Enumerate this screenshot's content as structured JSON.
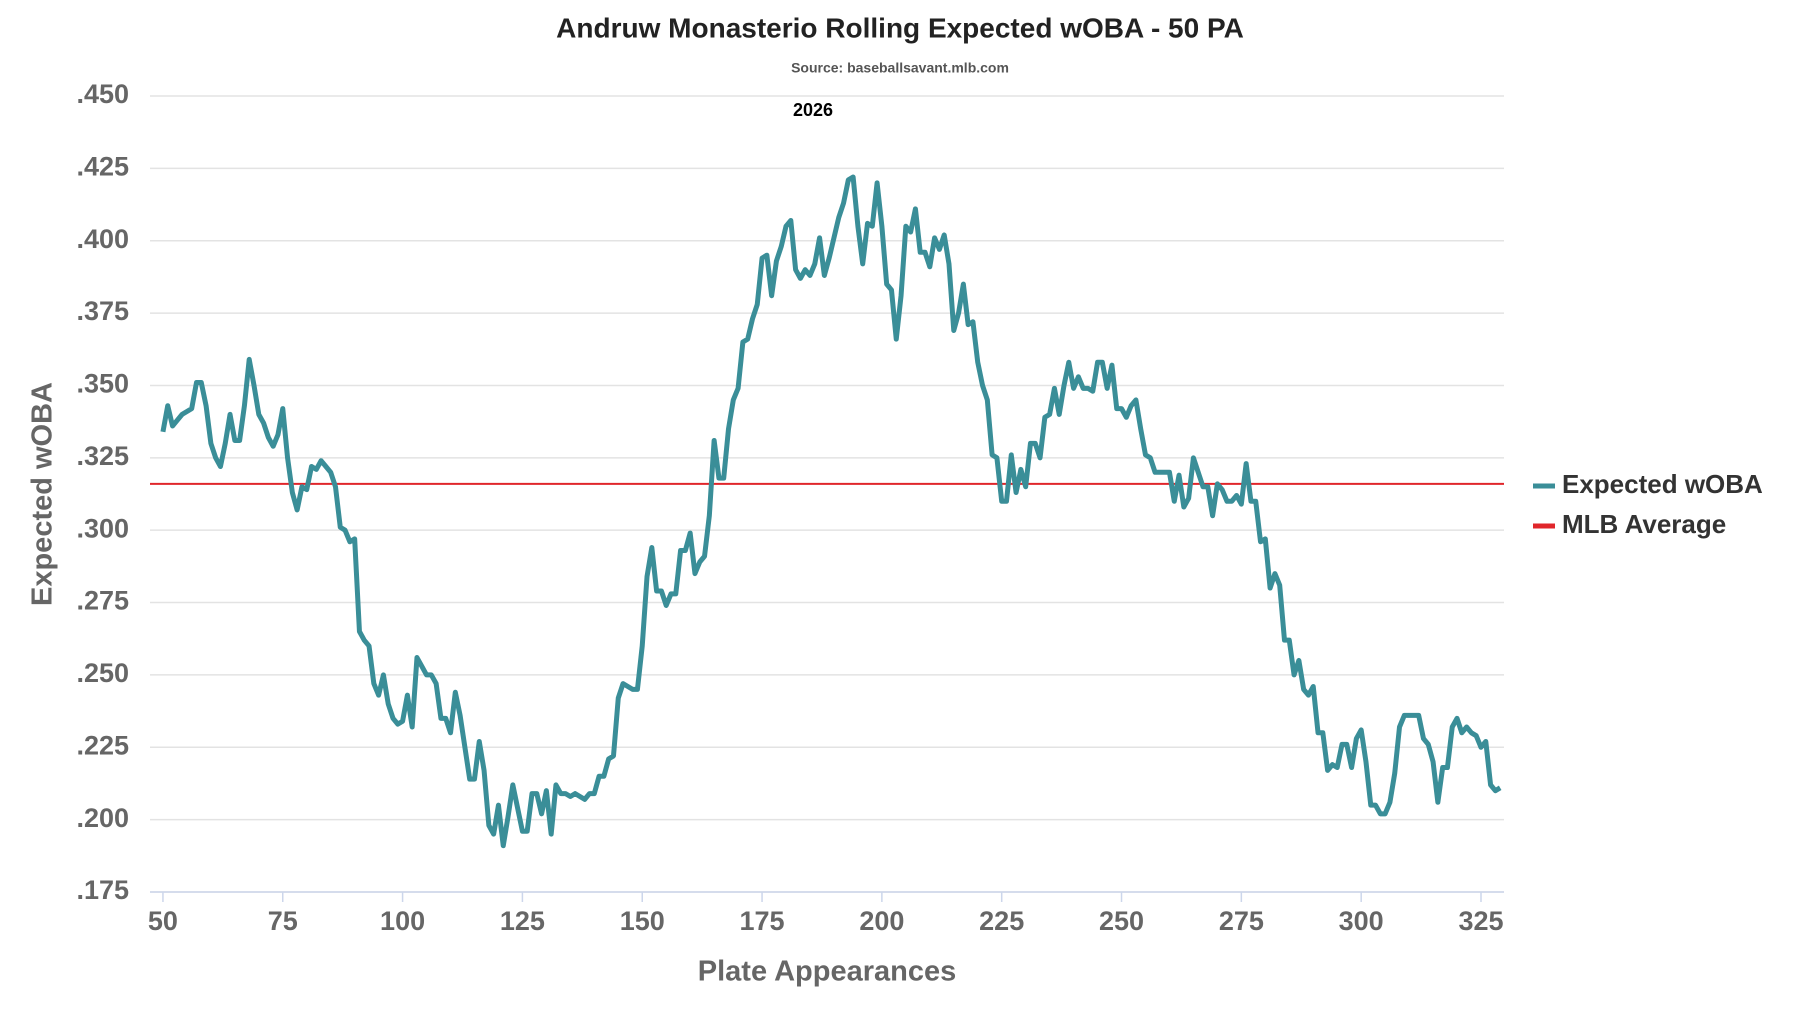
{
  "chart_data": {
    "type": "line",
    "title": "Andruw Monasterio Rolling Expected wOBA - 50 PA",
    "subtitle": "Source: baseballsavant.mlb.com",
    "annotation": "2026",
    "x_label": "Plate Appearances",
    "y_label": "Expected wOBA",
    "xlim": [
      47.3,
      329.8
    ],
    "ylim": [
      0.175,
      0.45
    ],
    "xticks": [
      50,
      75,
      100,
      125,
      150,
      175,
      200,
      225,
      250,
      275,
      300,
      325
    ],
    "yticks": [
      {
        "value": 0.175,
        "label": ".175"
      },
      {
        "value": 0.2,
        "label": ".200"
      },
      {
        "value": 0.225,
        "label": ".225"
      },
      {
        "value": 0.25,
        "label": ".250"
      },
      {
        "value": 0.275,
        "label": ".275"
      },
      {
        "value": 0.3,
        "label": ".300"
      },
      {
        "value": 0.325,
        "label": ".325"
      },
      {
        "value": 0.35,
        "label": ".350"
      },
      {
        "value": 0.375,
        "label": ".375"
      },
      {
        "value": 0.4,
        "label": ".400"
      },
      {
        "value": 0.425,
        "label": ".425"
      },
      {
        "value": 0.45,
        "label": ".450"
      }
    ],
    "grid": true,
    "legend": "right",
    "x": [
      50,
      51,
      52,
      53,
      54,
      55,
      56,
      57,
      58,
      59,
      60,
      61,
      62,
      63,
      64,
      65,
      66,
      67,
      68,
      69,
      70,
      71,
      72,
      73,
      74,
      75,
      76,
      77,
      78,
      79,
      80,
      81,
      82,
      83,
      84,
      85,
      86,
      87,
      88,
      89,
      90,
      91,
      92,
      93,
      94,
      95,
      96,
      97,
      98,
      99,
      100,
      101,
      102,
      103,
      104,
      105,
      106,
      107,
      108,
      109,
      110,
      111,
      112,
      113,
      114,
      115,
      116,
      117,
      118,
      119,
      120,
      121,
      122,
      123,
      124,
      125,
      126,
      127,
      128,
      129,
      130,
      131,
      132,
      133,
      134,
      135,
      136,
      137,
      138,
      139,
      140,
      141,
      142,
      143,
      144,
      145,
      146,
      147,
      148,
      149,
      150,
      151,
      152,
      153,
      154,
      155,
      156,
      157,
      158,
      159,
      160,
      161,
      162,
      163,
      164,
      165,
      166,
      167,
      168,
      169,
      170,
      171,
      172,
      173,
      174,
      175,
      176,
      177,
      178,
      179,
      180,
      181,
      182,
      183,
      184,
      185,
      186,
      187,
      188,
      189,
      190,
      191,
      192,
      193,
      194,
      195,
      196,
      197,
      198,
      199,
      200,
      201,
      202,
      203,
      204,
      205,
      206,
      207,
      208,
      209,
      210,
      211,
      212,
      213,
      214,
      215,
      216,
      217,
      218,
      219,
      220,
      221,
      222,
      223,
      224,
      225,
      226,
      227,
      228,
      229,
      230,
      231,
      232,
      233,
      234,
      235,
      236,
      237,
      238,
      239,
      240,
      241,
      242,
      243,
      244,
      245,
      246,
      247,
      248,
      249,
      250,
      251,
      252,
      253,
      254,
      255,
      256,
      257,
      258,
      259,
      260,
      261,
      262,
      263,
      264,
      265,
      266,
      267,
      268,
      269,
      270,
      271,
      272,
      273,
      274,
      275,
      276,
      277,
      278,
      279,
      280,
      281,
      282,
      283,
      284,
      285,
      286,
      287,
      288,
      289,
      290,
      291,
      292,
      293,
      294,
      295,
      296,
      297,
      298,
      299,
      300,
      301,
      302,
      303,
      304,
      305,
      306,
      307,
      308,
      309,
      310,
      311,
      312,
      313,
      314,
      315,
      316,
      317,
      318,
      319,
      320,
      321,
      322,
      323,
      324,
      325,
      326,
      327,
      328,
      329
    ],
    "series": [
      {
        "name": "Expected wOBA",
        "color": "#3a8e98",
        "values": [
          0.334,
          0.343,
          0.336,
          0.338,
          0.34,
          0.341,
          0.342,
          0.351,
          0.351,
          0.343,
          0.33,
          0.325,
          0.322,
          0.33,
          0.34,
          0.331,
          0.331,
          0.343,
          0.359,
          0.35,
          0.34,
          0.337,
          0.332,
          0.329,
          0.333,
          0.342,
          0.325,
          0.313,
          0.307,
          0.315,
          0.314,
          0.322,
          0.321,
          0.324,
          0.322,
          0.32,
          0.315,
          0.301,
          0.3,
          0.296,
          0.297,
          0.265,
          0.262,
          0.26,
          0.247,
          0.243,
          0.25,
          0.24,
          0.235,
          0.233,
          0.234,
          0.243,
          0.232,
          0.256,
          0.253,
          0.25,
          0.25,
          0.247,
          0.235,
          0.235,
          0.23,
          0.244,
          0.236,
          0.225,
          0.214,
          0.214,
          0.227,
          0.217,
          0.198,
          0.195,
          0.205,
          0.191,
          0.201,
          0.212,
          0.204,
          0.196,
          0.196,
          0.209,
          0.209,
          0.202,
          0.21,
          0.195,
          0.212,
          0.209,
          0.209,
          0.208,
          0.209,
          0.208,
          0.207,
          0.209,
          0.209,
          0.215,
          0.215,
          0.221,
          0.222,
          0.242,
          0.247,
          0.246,
          0.245,
          0.245,
          0.26,
          0.284,
          0.294,
          0.279,
          0.279,
          0.274,
          0.278,
          0.278,
          0.293,
          0.293,
          0.299,
          0.285,
          0.289,
          0.291,
          0.305,
          0.331,
          0.318,
          0.318,
          0.335,
          0.345,
          0.349,
          0.365,
          0.366,
          0.373,
          0.378,
          0.394,
          0.395,
          0.381,
          0.393,
          0.398,
          0.405,
          0.407,
          0.39,
          0.387,
          0.39,
          0.388,
          0.392,
          0.401,
          0.388,
          0.394,
          0.401,
          0.408,
          0.413,
          0.421,
          0.422,
          0.405,
          0.392,
          0.406,
          0.405,
          0.42,
          0.405,
          0.385,
          0.383,
          0.366,
          0.381,
          0.405,
          0.403,
          0.411,
          0.396,
          0.396,
          0.391,
          0.401,
          0.397,
          0.402,
          0.392,
          0.369,
          0.375,
          0.385,
          0.371,
          0.372,
          0.358,
          0.35,
          0.345,
          0.326,
          0.325,
          0.31,
          0.31,
          0.326,
          0.313,
          0.321,
          0.315,
          0.33,
          0.33,
          0.325,
          0.339,
          0.34,
          0.349,
          0.34,
          0.35,
          0.358,
          0.349,
          0.353,
          0.349,
          0.349,
          0.348,
          0.358,
          0.358,
          0.349,
          0.357,
          0.342,
          0.342,
          0.339,
          0.343,
          0.345,
          0.335,
          0.326,
          0.325,
          0.32,
          0.32,
          0.32,
          0.32,
          0.31,
          0.319,
          0.308,
          0.311,
          0.325,
          0.32,
          0.315,
          0.315,
          0.305,
          0.316,
          0.314,
          0.31,
          0.31,
          0.312,
          0.309,
          0.323,
          0.31,
          0.31,
          0.296,
          0.297,
          0.28,
          0.285,
          0.281,
          0.262,
          0.262,
          0.25,
          0.255,
          0.245,
          0.243,
          0.246,
          0.23,
          0.23,
          0.217,
          0.219,
          0.218,
          0.226,
          0.226,
          0.218,
          0.228,
          0.231,
          0.22,
          0.205,
          0.205,
          0.202,
          0.202,
          0.206,
          0.216,
          0.232,
          0.236,
          0.236,
          0.236,
          0.236,
          0.228,
          0.226,
          0.22,
          0.206,
          0.218,
          0.218,
          0.232,
          0.235,
          0.23,
          0.232,
          0.23,
          0.229,
          0.225,
          0.227,
          0.212,
          0.21,
          0.211
        ]
      }
    ],
    "mlb_average": {
      "name": "MLB Average",
      "color": "#e0262b",
      "value": 0.316
    }
  }
}
